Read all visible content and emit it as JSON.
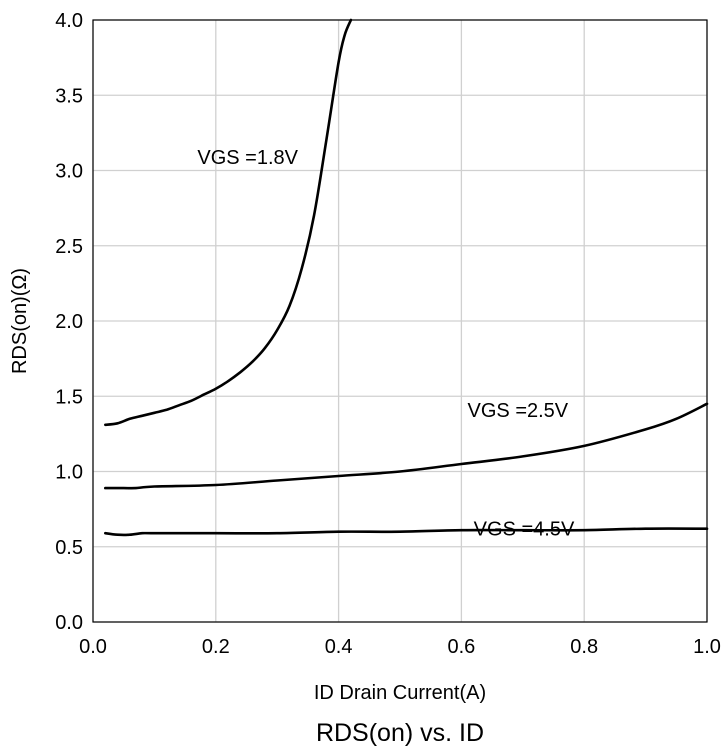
{
  "chart_data": {
    "type": "line",
    "title": "RDS(on) vs.  ID",
    "xlabel": "ID Drain Current(A)",
    "ylabel": "RDS(on)(Ω)",
    "xlim": [
      0.0,
      1.0
    ],
    "ylim": [
      0.0,
      4.0
    ],
    "x_ticks": [
      "0.0",
      "0.2",
      "0.4",
      "0.6",
      "0.8",
      "1.0"
    ],
    "y_ticks": [
      "0.0",
      "0.5",
      "1.0",
      "1.5",
      "2.0",
      "2.5",
      "3.0",
      "3.5",
      "4.0"
    ],
    "grid": true,
    "legend": "none",
    "series": [
      {
        "name": "VGS =1.8V",
        "color": "#000000",
        "points": [
          [
            0.02,
            1.31
          ],
          [
            0.04,
            1.32
          ],
          [
            0.06,
            1.35
          ],
          [
            0.08,
            1.37
          ],
          [
            0.1,
            1.39
          ],
          [
            0.12,
            1.41
          ],
          [
            0.14,
            1.44
          ],
          [
            0.16,
            1.47
          ],
          [
            0.18,
            1.51
          ],
          [
            0.2,
            1.55
          ],
          [
            0.22,
            1.6
          ],
          [
            0.24,
            1.66
          ],
          [
            0.26,
            1.73
          ],
          [
            0.28,
            1.82
          ],
          [
            0.3,
            1.94
          ],
          [
            0.32,
            2.1
          ],
          [
            0.34,
            2.35
          ],
          [
            0.36,
            2.7
          ],
          [
            0.38,
            3.2
          ],
          [
            0.4,
            3.72
          ],
          [
            0.41,
            3.9
          ],
          [
            0.42,
            4.0
          ]
        ]
      },
      {
        "name": "VGS =2.5V",
        "color": "#000000",
        "points": [
          [
            0.02,
            0.89
          ],
          [
            0.05,
            0.89
          ],
          [
            0.07,
            0.89
          ],
          [
            0.1,
            0.9
          ],
          [
            0.2,
            0.91
          ],
          [
            0.3,
            0.94
          ],
          [
            0.4,
            0.97
          ],
          [
            0.5,
            1.0
          ],
          [
            0.6,
            1.05
          ],
          [
            0.7,
            1.1
          ],
          [
            0.8,
            1.17
          ],
          [
            0.9,
            1.28
          ],
          [
            0.95,
            1.35
          ],
          [
            1.0,
            1.45
          ]
        ]
      },
      {
        "name": "VGS =4.5V",
        "color": "#000000",
        "points": [
          [
            0.02,
            0.59
          ],
          [
            0.04,
            0.58
          ],
          [
            0.06,
            0.58
          ],
          [
            0.08,
            0.59
          ],
          [
            0.1,
            0.59
          ],
          [
            0.2,
            0.59
          ],
          [
            0.3,
            0.59
          ],
          [
            0.4,
            0.6
          ],
          [
            0.5,
            0.6
          ],
          [
            0.6,
            0.61
          ],
          [
            0.7,
            0.61
          ],
          [
            0.8,
            0.61
          ],
          [
            0.9,
            0.62
          ],
          [
            1.0,
            0.62
          ]
        ]
      }
    ],
    "annotations": [
      {
        "text": "VGS =1.8V",
        "x": 0.17,
        "y": 3.09
      },
      {
        "text": "VGS =2.5V",
        "x": 0.61,
        "y": 1.41
      },
      {
        "text": "VGS =4.5V",
        "x": 0.62,
        "y": 0.62
      }
    ]
  }
}
